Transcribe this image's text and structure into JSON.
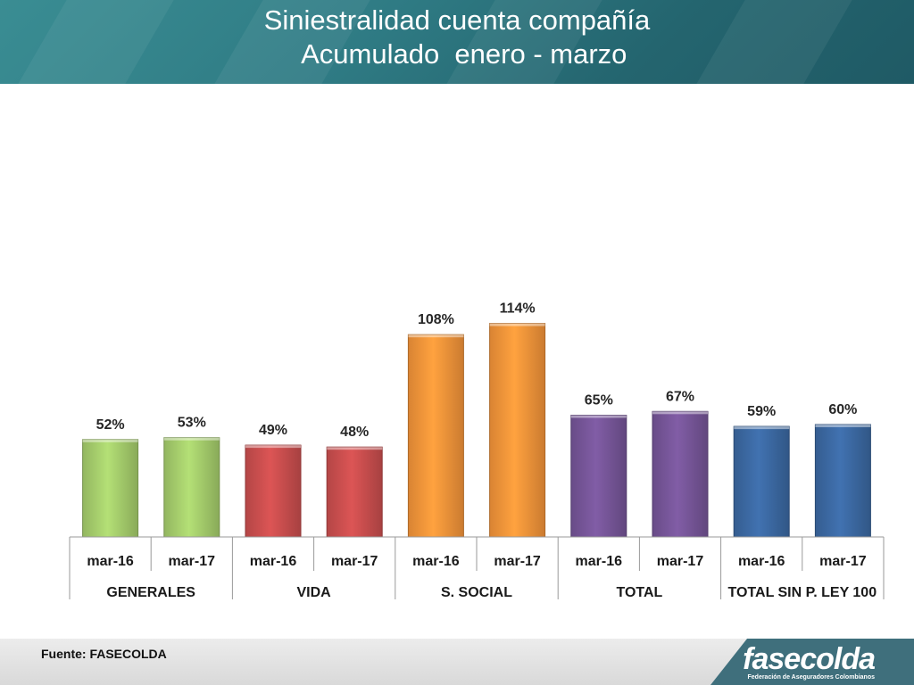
{
  "header": {
    "title_line1": "Siniestralidad cuenta compañía",
    "title_line2": "  Acumulado  enero - marzo"
  },
  "chart_data": {
    "type": "bar",
    "title": "Siniestralidad cuenta compañía Acumulado enero - marzo",
    "groups": [
      {
        "name": "GENERALES",
        "color": "#a7cf6d",
        "bars": [
          {
            "x": "mar-16",
            "value": 52,
            "label": "52%"
          },
          {
            "x": "mar-17",
            "value": 53,
            "label": "53%"
          }
        ]
      },
      {
        "name": "VIDA",
        "color": "#cc4f4f",
        "bars": [
          {
            "x": "mar-16",
            "value": 49,
            "label": "49%"
          },
          {
            "x": "mar-17",
            "value": 48,
            "label": "48%"
          }
        ]
      },
      {
        "name": "S. SOCIAL",
        "color": "#f7963a",
        "bars": [
          {
            "x": "mar-16",
            "value": 108,
            "label": "108%"
          },
          {
            "x": "mar-17",
            "value": 114,
            "label": "114%"
          }
        ]
      },
      {
        "name": "TOTAL",
        "color": "#77569a",
        "bars": [
          {
            "x": "mar-16",
            "value": 65,
            "label": "65%"
          },
          {
            "x": "mar-17",
            "value": 67,
            "label": "67%"
          }
        ]
      },
      {
        "name": "TOTAL SIN P. LEY 100",
        "color": "#3c6aa4",
        "bars": [
          {
            "x": "mar-16",
            "value": 59,
            "label": "59%"
          },
          {
            "x": "mar-17",
            "value": 60,
            "label": "60%"
          }
        ]
      }
    ],
    "ylim": [
      0,
      120
    ],
    "grid": false,
    "legend": "none"
  },
  "footer": {
    "source": "Fuente: FASECOLDA",
    "logo_text": "fasecolda",
    "logo_sub": "Federación de Aseguradores Colombianos"
  }
}
